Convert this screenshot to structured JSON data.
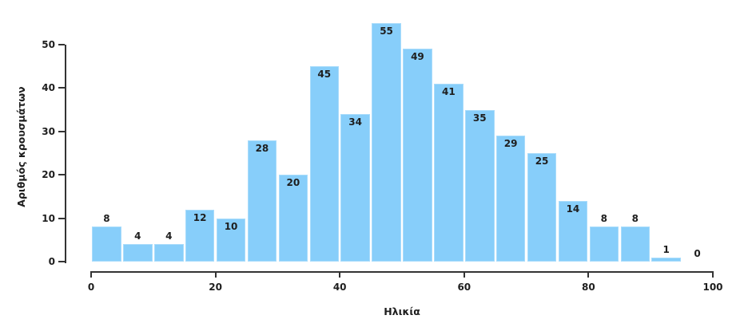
{
  "chart_data": {
    "type": "bar",
    "subtype": "histogram",
    "title": "",
    "xlabel": "Ηλικία",
    "ylabel": "Αριθμός κρουσμάτων",
    "bin_edges": [
      0,
      5,
      10,
      15,
      20,
      25,
      30,
      35,
      40,
      45,
      50,
      55,
      60,
      65,
      70,
      75,
      80,
      85,
      90,
      95,
      100
    ],
    "values": [
      8,
      4,
      4,
      12,
      10,
      28,
      20,
      45,
      34,
      55,
      49,
      41,
      35,
      29,
      25,
      14,
      8,
      8,
      1,
      0
    ],
    "x_ticks": [
      0,
      20,
      40,
      60,
      80,
      100
    ],
    "y_ticks": [
      0,
      10,
      20,
      30,
      40,
      50
    ],
    "xlim": [
      0,
      100
    ],
    "ylim": [
      0,
      50
    ],
    "grid": false,
    "legend": "none",
    "bar_color": "#87CEFA",
    "bar_edge_color": "#a9dcfb",
    "axis_color": "#333333",
    "text_color": "#1e1e1e"
  }
}
